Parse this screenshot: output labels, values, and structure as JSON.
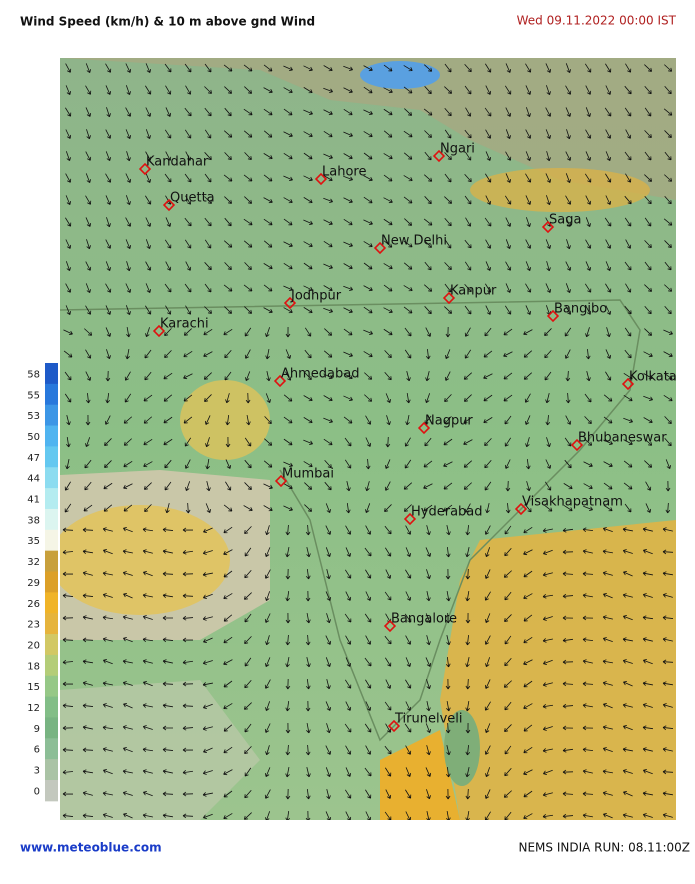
{
  "header": {
    "title": "Wind Speed (km/h)  & 10 m above gnd Wind",
    "timestamp": "Wed 09.11.2022  00:00 IST"
  },
  "legend": {
    "values": [
      58,
      55,
      53,
      50,
      47,
      44,
      41,
      38,
      35,
      32,
      29,
      26,
      23,
      20,
      18,
      15,
      12,
      9,
      6,
      3,
      0
    ],
    "colors": [
      "#1e5ac8",
      "#2878dc",
      "#3c96e6",
      "#50b4f0",
      "#64c8f0",
      "#8cdcf0",
      "#b4ecf0",
      "#dcf5f0",
      "#f5f5e6",
      "#c8a03c",
      "#dca028",
      "#f0b428",
      "#e6b43c",
      "#d2c864",
      "#b4cd78",
      "#96c887",
      "#82be87",
      "#78b482",
      "#8cbe96",
      "#aac3a5",
      "#c3c8be"
    ]
  },
  "cities": [
    {
      "name": "Kandahar"
    },
    {
      "name": "Quetta"
    },
    {
      "name": "Lahore"
    },
    {
      "name": "Ngari"
    },
    {
      "name": "Saga"
    },
    {
      "name": "New Delhi"
    },
    {
      "name": "Kanpur"
    },
    {
      "name": "Jodhpur"
    },
    {
      "name": "Bangibo"
    },
    {
      "name": "Karachi"
    },
    {
      "name": "Ahmedabad"
    },
    {
      "name": "Kolkata"
    },
    {
      "name": "Nagpur"
    },
    {
      "name": "Bhubaneswar"
    },
    {
      "name": "Mumbai"
    },
    {
      "name": "Visakhapatnam"
    },
    {
      "name": "Hyderabad"
    },
    {
      "name": "Bangalore"
    },
    {
      "name": "Tirunelveli"
    }
  ],
  "footer": {
    "site": "www.meteoblue.com",
    "run": "NEMS INDIA   RUN: 08.11:00Z"
  }
}
